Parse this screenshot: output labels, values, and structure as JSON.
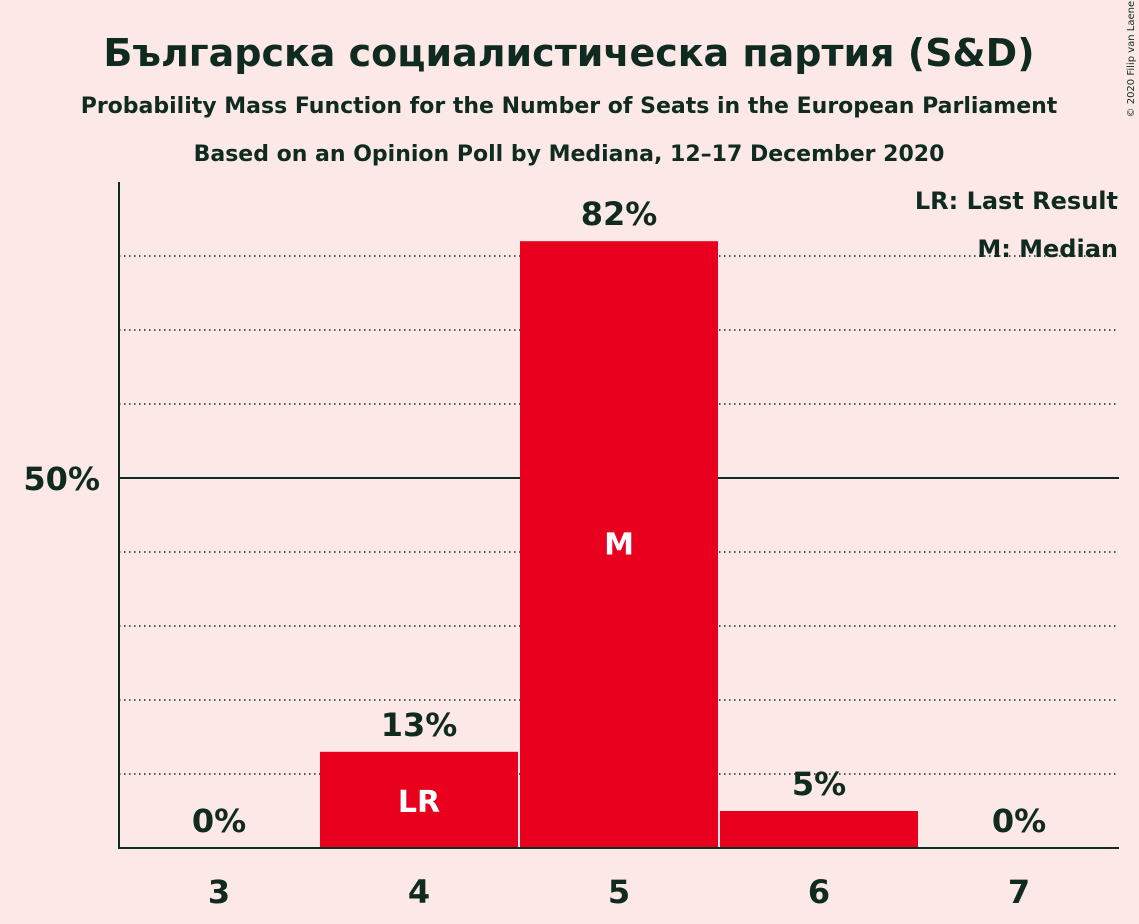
{
  "header": {
    "title": "Българска социалистическа партия (S&D)",
    "subtitle": "Probability Mass Function for the Number of Seats in the European Parliament",
    "subtitle2": "Based on an Opinion Poll by Mediana, 12–17 December 2020",
    "copyright": "© 2020 Filip van Laenen"
  },
  "legend": {
    "last_result": "LR: Last Result",
    "median": "M: Median"
  },
  "colors": {
    "background": "#FDE8E8",
    "bar": "#E8001E",
    "text": "#0F2A1E"
  },
  "chart_data": {
    "type": "bar",
    "categories": [
      "3",
      "4",
      "5",
      "6",
      "7"
    ],
    "values": [
      0,
      13,
      82,
      5,
      0
    ],
    "value_labels": [
      "0%",
      "13%",
      "82%",
      "5%",
      "0%"
    ],
    "bar_markers": [
      "",
      "LR",
      "M",
      "",
      ""
    ],
    "ylim": [
      0,
      90
    ],
    "y_ticks": [
      {
        "value": 50,
        "label": "50%"
      }
    ],
    "gridlines_dotted": [
      10,
      20,
      30,
      40,
      60,
      70,
      80
    ],
    "gridline_solid": 50,
    "legend_position": "top-right",
    "last_result": "4",
    "median": "5"
  }
}
